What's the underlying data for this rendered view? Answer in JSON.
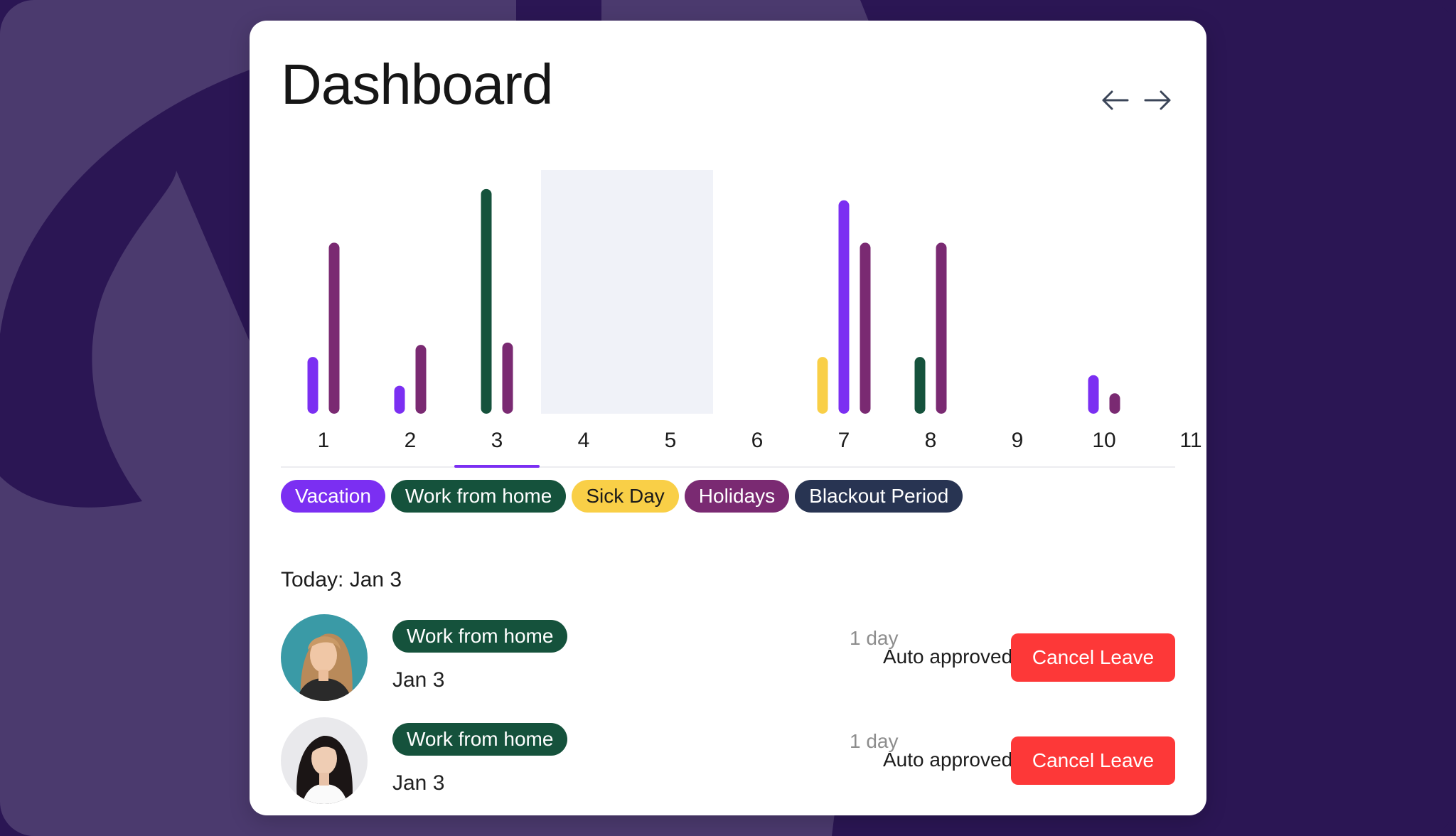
{
  "header": {
    "title": "Dashboard"
  },
  "nav": {
    "prev_icon": "arrow-left-icon",
    "next_icon": "arrow-right-icon"
  },
  "colors": {
    "vacation": "#7b2ff2",
    "work_from_home": "#15523c",
    "sick_day": "#f9cf47",
    "holidays": "#7a2a72",
    "blackout": "#283452",
    "cancel": "#fd3838",
    "background": "#2b1654"
  },
  "chart_data": {
    "type": "bar",
    "categories": [
      "1",
      "2",
      "3",
      "4",
      "5",
      "6",
      "7",
      "8",
      "9",
      "10",
      "11"
    ],
    "selected_category": "3",
    "highlight_range": [
      "4",
      "5"
    ],
    "ylim": [
      0,
      310
    ],
    "series": [
      {
        "name": "Vacation",
        "values": [
          75,
          37,
          0,
          0,
          0,
          0,
          282,
          0,
          0,
          51,
          0
        ]
      },
      {
        "name": "Work from home",
        "values": [
          0,
          0,
          297,
          0,
          0,
          0,
          0,
          75,
          0,
          0,
          0
        ]
      },
      {
        "name": "Sick Day",
        "values": [
          0,
          0,
          0,
          0,
          0,
          0,
          75,
          0,
          0,
          0,
          0
        ]
      },
      {
        "name": "Holidays",
        "values": [
          226,
          91,
          94,
          0,
          0,
          0,
          226,
          226,
          0,
          27,
          0
        ]
      }
    ]
  },
  "legend": [
    {
      "label": "Vacation"
    },
    {
      "label": "Work from home"
    },
    {
      "label": "Sick Day"
    },
    {
      "label": "Holidays"
    },
    {
      "label": "Blackout Period"
    }
  ],
  "today_label": "Today: Jan 3",
  "leaves": [
    {
      "type": "Work from home",
      "duration": "1 day",
      "date": "Jan 3",
      "status": "Auto approved",
      "action": "Cancel Leave"
    },
    {
      "type": "Work from home",
      "duration": "1 day",
      "date": "Jan 3",
      "status": "Auto approved",
      "action": "Cancel Leave"
    }
  ]
}
